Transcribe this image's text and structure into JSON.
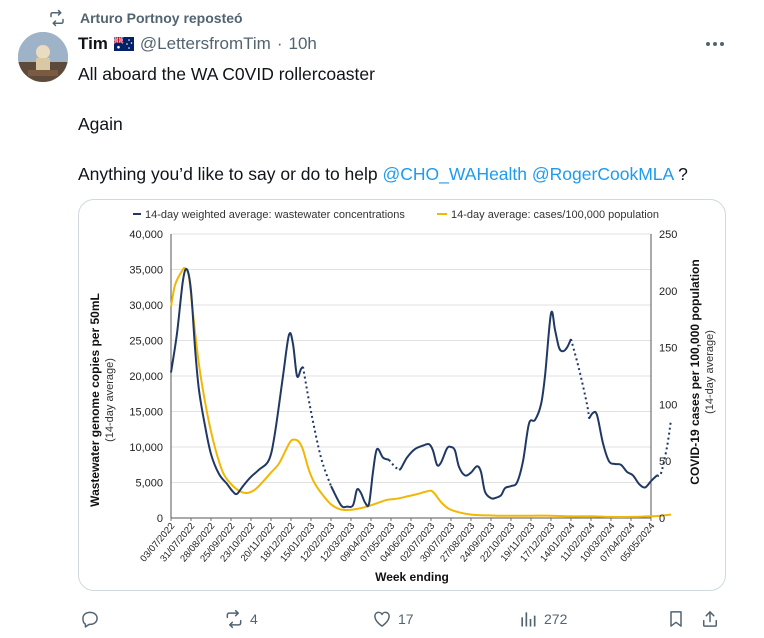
{
  "repost": {
    "label": "Arturo Portnoy reposteó"
  },
  "author": {
    "name": "Tim",
    "handle": "@LettersfromTim",
    "separator": "·",
    "time": "10h"
  },
  "tweet": {
    "line1": "All aboard the WA C0VID rollercoaster",
    "line2": "Again",
    "line3_text": "Anything you’d like to say or do to help",
    "mention1": "@CHO_WAHealth",
    "mention2": "@RogerCookMLA",
    "line3_end": "?"
  },
  "actions": {
    "replies": "",
    "reposts": "4",
    "likes": "17",
    "views": "272"
  },
  "colors": {
    "wastewater": "#1f3864",
    "cases": "#f2b705",
    "mention": "#1d9bf0",
    "muted": "#536471"
  },
  "icons": [
    "repost-icon",
    "flag-icon",
    "more-icon",
    "reply-icon",
    "repost-icon",
    "like-icon",
    "views-icon",
    "bookmark-icon",
    "share-icon"
  ],
  "chart_data": {
    "type": "line",
    "xlabel": "Week ending",
    "ylabel_left": "Wastewater genome copies per 50mL",
    "ylabel_left_sub": "(14-day average)",
    "ylabel_right": "COVID-19 cases per 100,000 population",
    "ylabel_right_sub": "(14-day average)",
    "ylim_left": [
      0,
      40000
    ],
    "ylim_right": [
      0,
      250
    ],
    "yticks_left": [
      "40,000",
      "35,000",
      "30,000",
      "25,000",
      "20,000",
      "15,000",
      "10,000",
      "5,000",
      "0"
    ],
    "yticks_right": [
      "250",
      "200",
      "150",
      "100",
      "50",
      "0"
    ],
    "x_ticks": [
      "03/07/2022",
      "31/07/2022",
      "28/08/2022",
      "25/09/2022",
      "23/10/2022",
      "20/11/2022",
      "18/12/2022",
      "15/01/2023",
      "12/02/2023",
      "12/03/2023",
      "09/04/2023",
      "07/05/2023",
      "04/06/2023",
      "02/07/2023",
      "30/07/2023",
      "27/08/2023",
      "24/09/2023",
      "22/10/2023",
      "19/11/2023",
      "17/12/2023",
      "14/01/2024",
      "11/02/2024",
      "10/03/2024",
      "07/04/2024",
      "05/05/2024"
    ],
    "legend_placement": "top",
    "series": [
      {
        "name": "14-day weighted average: wastewater concentrations",
        "axis": "left",
        "points": [
          [
            0,
            20500
          ],
          [
            0.3,
            26000
          ],
          [
            0.6,
            33500
          ],
          [
            0.8,
            35000
          ],
          [
            1.0,
            32000
          ],
          [
            1.2,
            24000
          ],
          [
            1.4,
            18000
          ],
          [
            1.7,
            13000
          ],
          [
            2.0,
            9000
          ],
          [
            2.4,
            6200
          ],
          [
            2.8,
            4800
          ],
          [
            3.1,
            3700
          ],
          [
            3.3,
            3400
          ],
          [
            3.6,
            4500
          ],
          [
            4.0,
            5800
          ],
          [
            4.4,
            6800
          ],
          [
            4.9,
            8200
          ],
          [
            5.2,
            12000
          ],
          [
            5.6,
            20000
          ],
          [
            5.9,
            25800
          ],
          [
            6.1,
            24500
          ],
          [
            6.3,
            20000
          ],
          [
            6.5,
            21000
          ],
          [
            6.6,
            21300
          ],
          [
            7.0,
            15000
          ],
          [
            7.5,
            8500
          ],
          [
            8.0,
            4500
          ],
          [
            8.5,
            1800
          ],
          [
            8.8,
            1600
          ],
          [
            9.1,
            1800
          ],
          [
            9.3,
            4000
          ],
          [
            9.5,
            3500
          ],
          [
            9.7,
            2200
          ],
          [
            9.9,
            2000
          ],
          [
            10.1,
            6500
          ],
          [
            10.3,
            9700
          ],
          [
            10.6,
            8500
          ],
          [
            10.9,
            8200
          ],
          [
            11.2,
            7200
          ],
          [
            11.4,
            6800
          ],
          [
            11.5,
            7000
          ],
          [
            11.8,
            8500
          ],
          [
            12.2,
            9700
          ],
          [
            12.6,
            10200
          ],
          [
            12.9,
            10400
          ],
          [
            13.1,
            9500
          ],
          [
            13.3,
            7500
          ],
          [
            13.5,
            7800
          ],
          [
            13.8,
            9800
          ],
          [
            14.0,
            10000
          ],
          [
            14.2,
            9500
          ],
          [
            14.4,
            7200
          ],
          [
            14.7,
            6000
          ],
          [
            15.0,
            6400
          ],
          [
            15.3,
            7300
          ],
          [
            15.5,
            6500
          ],
          [
            15.7,
            3700
          ],
          [
            16.0,
            2800
          ],
          [
            16.2,
            2800
          ],
          [
            16.5,
            3200
          ],
          [
            16.7,
            4200
          ],
          [
            17.0,
            4500
          ],
          [
            17.3,
            5000
          ],
          [
            17.6,
            8000
          ],
          [
            17.9,
            13300
          ],
          [
            18.2,
            13800
          ],
          [
            18.5,
            16000
          ],
          [
            18.7,
            20000
          ],
          [
            19.0,
            28800
          ],
          [
            19.2,
            26500
          ],
          [
            19.4,
            24000
          ],
          [
            19.6,
            23500
          ],
          [
            19.8,
            24000
          ],
          [
            20.0,
            25200
          ],
          [
            20.4,
            21000
          ],
          [
            20.8,
            16000
          ],
          [
            20.9,
            14000
          ],
          [
            21.1,
            14800
          ],
          [
            21.3,
            14500
          ],
          [
            21.6,
            10500
          ],
          [
            21.9,
            8000
          ],
          [
            22.2,
            7600
          ],
          [
            22.5,
            7500
          ],
          [
            22.8,
            6500
          ],
          [
            23.1,
            6000
          ],
          [
            23.4,
            4800
          ],
          [
            23.7,
            4300
          ],
          [
            24.0,
            5200
          ],
          [
            24.3,
            6000
          ],
          [
            24.5,
            6300
          ],
          [
            24.8,
            10000
          ],
          [
            25.0,
            13800
          ]
        ],
        "dotted_ranges": [
          [
            6.6,
            8.0
          ],
          [
            10.9,
            11.4
          ],
          [
            20.0,
            20.9
          ],
          [
            24.3,
            25.0
          ]
        ]
      },
      {
        "name": "14-day average: cases/100,000 population",
        "axis": "right",
        "points": [
          [
            0,
            186
          ],
          [
            0.2,
            205
          ],
          [
            0.5,
            216
          ],
          [
            0.7,
            220
          ],
          [
            0.9,
            212
          ],
          [
            1.1,
            180
          ],
          [
            1.4,
            135
          ],
          [
            1.8,
            93
          ],
          [
            2.2,
            62
          ],
          [
            2.6,
            40
          ],
          [
            3.0,
            30
          ],
          [
            3.4,
            24
          ],
          [
            3.8,
            22
          ],
          [
            4.2,
            25
          ],
          [
            4.6,
            32
          ],
          [
            5.0,
            40
          ],
          [
            5.4,
            48
          ],
          [
            5.8,
            62
          ],
          [
            6.0,
            68
          ],
          [
            6.2,
            69
          ],
          [
            6.4,
            67
          ],
          [
            6.6,
            60
          ],
          [
            6.9,
            42
          ],
          [
            7.2,
            30
          ],
          [
            7.6,
            20
          ],
          [
            8.0,
            12
          ],
          [
            8.4,
            8
          ],
          [
            8.8,
            7
          ],
          [
            9.3,
            8
          ],
          [
            9.8,
            10
          ],
          [
            10.3,
            13
          ],
          [
            10.8,
            16
          ],
          [
            11.3,
            17
          ],
          [
            11.8,
            19
          ],
          [
            12.3,
            21
          ],
          [
            12.7,
            23
          ],
          [
            13.0,
            24
          ],
          [
            13.2,
            21
          ],
          [
            13.5,
            14
          ],
          [
            13.9,
            8
          ],
          [
            14.4,
            5
          ],
          [
            15.0,
            3
          ],
          [
            15.6,
            2.5
          ],
          [
            16.3,
            2
          ],
          [
            17.0,
            2
          ],
          [
            18.0,
            2
          ],
          [
            19.0,
            2
          ],
          [
            20.0,
            1.5
          ],
          [
            21.0,
            1.5
          ],
          [
            22.0,
            1
          ],
          [
            23.0,
            1
          ],
          [
            24.0,
            1.5
          ],
          [
            24.5,
            2
          ],
          [
            25.0,
            3
          ]
        ]
      }
    ]
  }
}
